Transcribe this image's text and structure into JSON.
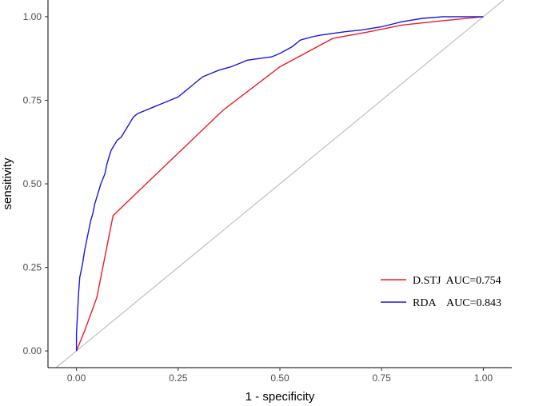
{
  "chart_data": {
    "type": "line",
    "title": "",
    "xlabel": "1 - specificity",
    "ylabel": "sensitivity",
    "xlim": [
      -0.07,
      1.07
    ],
    "ylim": [
      -0.05,
      1.05
    ],
    "x_ticks": [
      0.0,
      0.25,
      0.5,
      0.75,
      1.0
    ],
    "x_tick_labels": [
      "0.00",
      "0.25",
      "0.50",
      "0.75",
      "1.00"
    ],
    "y_ticks": [
      0.0,
      0.25,
      0.5,
      0.75,
      1.0
    ],
    "y_tick_labels": [
      "0.00",
      "0.25",
      "0.50",
      "0.75",
      "1.00"
    ],
    "grid": false,
    "legend_position": "bottom-right",
    "reference_line": {
      "from": [
        0,
        0
      ],
      "to": [
        1,
        1
      ],
      "color": "#bfbfbf"
    },
    "series": [
      {
        "name": "D.STJ",
        "legend_label": "D.STJ  AUC=0.754",
        "color": "#ee1c25",
        "x": [
          0.0,
          0.02,
          0.05,
          0.09,
          0.18,
          0.36,
          0.5,
          0.63,
          0.72,
          0.8,
          0.9,
          1.0
        ],
        "y": [
          0.0,
          0.06,
          0.16,
          0.405,
          0.51,
          0.72,
          0.85,
          0.935,
          0.955,
          0.975,
          0.988,
          1.0
        ]
      },
      {
        "name": "RDA",
        "legend_label": "RDA    AUC=0.843",
        "color": "#1818dd",
        "x": [
          0.0,
          0.0,
          0.005,
          0.008,
          0.015,
          0.02,
          0.025,
          0.03,
          0.035,
          0.04,
          0.045,
          0.05,
          0.055,
          0.06,
          0.07,
          0.075,
          0.08,
          0.085,
          0.09,
          0.1,
          0.11,
          0.12,
          0.13,
          0.14,
          0.15,
          0.17,
          0.19,
          0.21,
          0.23,
          0.25,
          0.27,
          0.29,
          0.31,
          0.33,
          0.35,
          0.38,
          0.4,
          0.42,
          0.45,
          0.48,
          0.5,
          0.53,
          0.55,
          0.58,
          0.6,
          0.63,
          0.66,
          0.7,
          0.75,
          0.8,
          0.85,
          0.9,
          1.0
        ],
        "y": [
          0.0,
          0.05,
          0.17,
          0.22,
          0.26,
          0.3,
          0.33,
          0.36,
          0.39,
          0.41,
          0.44,
          0.46,
          0.48,
          0.5,
          0.53,
          0.56,
          0.58,
          0.6,
          0.61,
          0.63,
          0.64,
          0.66,
          0.68,
          0.7,
          0.71,
          0.72,
          0.73,
          0.74,
          0.75,
          0.76,
          0.78,
          0.8,
          0.82,
          0.83,
          0.84,
          0.85,
          0.86,
          0.87,
          0.875,
          0.88,
          0.89,
          0.91,
          0.93,
          0.94,
          0.945,
          0.95,
          0.955,
          0.96,
          0.97,
          0.985,
          0.995,
          1.0,
          1.0
        ]
      }
    ]
  }
}
